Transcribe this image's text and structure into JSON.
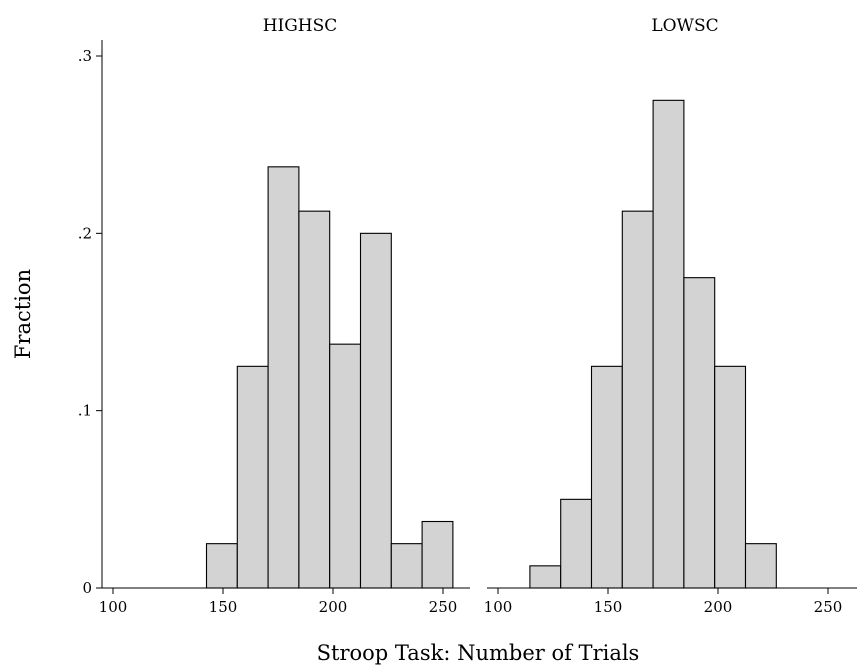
{
  "chart_data": {
    "type": "bar",
    "ylabel": "Fraction",
    "xlabel": "Stroop Task: Number of Trials",
    "ylim": [
      0,
      0.3
    ],
    "xlim": [
      95,
      260
    ],
    "y_ticks": [
      {
        "value": 0,
        "label": "0"
      },
      {
        "value": 0.1,
        "label": ".1"
      },
      {
        "value": 0.2,
        "label": ".2"
      },
      {
        "value": 0.3,
        "label": ".3"
      }
    ],
    "x_ticks": [
      {
        "value": 100,
        "label": "100"
      },
      {
        "value": 150,
        "label": "150"
      },
      {
        "value": 200,
        "label": "200"
      },
      {
        "value": 250,
        "label": "250"
      }
    ],
    "grid": false,
    "panels": [
      {
        "title": "HIGHSC",
        "bins": [
          {
            "start": 142.5,
            "end": 156.5,
            "value": 0.025
          },
          {
            "start": 156.5,
            "end": 170.5,
            "value": 0.125
          },
          {
            "start": 170.5,
            "end": 184.5,
            "value": 0.2375
          },
          {
            "start": 184.5,
            "end": 198.5,
            "value": 0.2125
          },
          {
            "start": 198.5,
            "end": 212.5,
            "value": 0.1375
          },
          {
            "start": 212.5,
            "end": 226.5,
            "value": 0.2
          },
          {
            "start": 226.5,
            "end": 240.5,
            "value": 0.025
          },
          {
            "start": 240.5,
            "end": 254.5,
            "value": 0.0375
          }
        ]
      },
      {
        "title": "LOWSC",
        "bins": [
          {
            "start": 114.5,
            "end": 128.5,
            "value": 0.0125
          },
          {
            "start": 128.5,
            "end": 142.5,
            "value": 0.05
          },
          {
            "start": 142.5,
            "end": 156.5,
            "value": 0.125
          },
          {
            "start": 156.5,
            "end": 170.5,
            "value": 0.2125
          },
          {
            "start": 170.5,
            "end": 184.5,
            "value": 0.275
          },
          {
            "start": 184.5,
            "end": 198.5,
            "value": 0.175
          },
          {
            "start": 198.5,
            "end": 212.5,
            "value": 0.125
          },
          {
            "start": 212.5,
            "end": 226.5,
            "value": 0.025
          }
        ]
      }
    ]
  }
}
